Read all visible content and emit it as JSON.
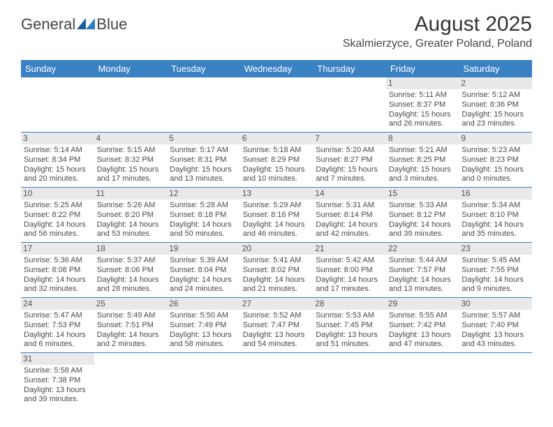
{
  "logo": {
    "text1": "General",
    "text2": "Blue",
    "color_text": "#444444",
    "color_blue": "#1a5fa0"
  },
  "title": "August 2025",
  "location": "Skalmierzyce, Greater Poland, Poland",
  "header_bg": "#3b82c4",
  "daynum_bg": "#e9e9e9",
  "weekdays": [
    "Sunday",
    "Monday",
    "Tuesday",
    "Wednesday",
    "Thursday",
    "Friday",
    "Saturday"
  ],
  "weeks": [
    [
      null,
      null,
      null,
      null,
      null,
      {
        "n": "1",
        "sr": "Sunrise: 5:11 AM",
        "ss": "Sunset: 8:37 PM",
        "d1": "Daylight: 15 hours",
        "d2": "and 26 minutes."
      },
      {
        "n": "2",
        "sr": "Sunrise: 5:12 AM",
        "ss": "Sunset: 8:36 PM",
        "d1": "Daylight: 15 hours",
        "d2": "and 23 minutes."
      }
    ],
    [
      {
        "n": "3",
        "sr": "Sunrise: 5:14 AM",
        "ss": "Sunset: 8:34 PM",
        "d1": "Daylight: 15 hours",
        "d2": "and 20 minutes."
      },
      {
        "n": "4",
        "sr": "Sunrise: 5:15 AM",
        "ss": "Sunset: 8:32 PM",
        "d1": "Daylight: 15 hours",
        "d2": "and 17 minutes."
      },
      {
        "n": "5",
        "sr": "Sunrise: 5:17 AM",
        "ss": "Sunset: 8:31 PM",
        "d1": "Daylight: 15 hours",
        "d2": "and 13 minutes."
      },
      {
        "n": "6",
        "sr": "Sunrise: 5:18 AM",
        "ss": "Sunset: 8:29 PM",
        "d1": "Daylight: 15 hours",
        "d2": "and 10 minutes."
      },
      {
        "n": "7",
        "sr": "Sunrise: 5:20 AM",
        "ss": "Sunset: 8:27 PM",
        "d1": "Daylight: 15 hours",
        "d2": "and 7 minutes."
      },
      {
        "n": "8",
        "sr": "Sunrise: 5:21 AM",
        "ss": "Sunset: 8:25 PM",
        "d1": "Daylight: 15 hours",
        "d2": "and 3 minutes."
      },
      {
        "n": "9",
        "sr": "Sunrise: 5:23 AM",
        "ss": "Sunset: 8:23 PM",
        "d1": "Daylight: 15 hours",
        "d2": "and 0 minutes."
      }
    ],
    [
      {
        "n": "10",
        "sr": "Sunrise: 5:25 AM",
        "ss": "Sunset: 8:22 PM",
        "d1": "Daylight: 14 hours",
        "d2": "and 56 minutes."
      },
      {
        "n": "11",
        "sr": "Sunrise: 5:26 AM",
        "ss": "Sunset: 8:20 PM",
        "d1": "Daylight: 14 hours",
        "d2": "and 53 minutes."
      },
      {
        "n": "12",
        "sr": "Sunrise: 5:28 AM",
        "ss": "Sunset: 8:18 PM",
        "d1": "Daylight: 14 hours",
        "d2": "and 50 minutes."
      },
      {
        "n": "13",
        "sr": "Sunrise: 5:29 AM",
        "ss": "Sunset: 8:16 PM",
        "d1": "Daylight: 14 hours",
        "d2": "and 46 minutes."
      },
      {
        "n": "14",
        "sr": "Sunrise: 5:31 AM",
        "ss": "Sunset: 8:14 PM",
        "d1": "Daylight: 14 hours",
        "d2": "and 42 minutes."
      },
      {
        "n": "15",
        "sr": "Sunrise: 5:33 AM",
        "ss": "Sunset: 8:12 PM",
        "d1": "Daylight: 14 hours",
        "d2": "and 39 minutes."
      },
      {
        "n": "16",
        "sr": "Sunrise: 5:34 AM",
        "ss": "Sunset: 8:10 PM",
        "d1": "Daylight: 14 hours",
        "d2": "and 35 minutes."
      }
    ],
    [
      {
        "n": "17",
        "sr": "Sunrise: 5:36 AM",
        "ss": "Sunset: 8:08 PM",
        "d1": "Daylight: 14 hours",
        "d2": "and 32 minutes."
      },
      {
        "n": "18",
        "sr": "Sunrise: 5:37 AM",
        "ss": "Sunset: 8:06 PM",
        "d1": "Daylight: 14 hours",
        "d2": "and 28 minutes."
      },
      {
        "n": "19",
        "sr": "Sunrise: 5:39 AM",
        "ss": "Sunset: 8:04 PM",
        "d1": "Daylight: 14 hours",
        "d2": "and 24 minutes."
      },
      {
        "n": "20",
        "sr": "Sunrise: 5:41 AM",
        "ss": "Sunset: 8:02 PM",
        "d1": "Daylight: 14 hours",
        "d2": "and 21 minutes."
      },
      {
        "n": "21",
        "sr": "Sunrise: 5:42 AM",
        "ss": "Sunset: 8:00 PM",
        "d1": "Daylight: 14 hours",
        "d2": "and 17 minutes."
      },
      {
        "n": "22",
        "sr": "Sunrise: 5:44 AM",
        "ss": "Sunset: 7:57 PM",
        "d1": "Daylight: 14 hours",
        "d2": "and 13 minutes."
      },
      {
        "n": "23",
        "sr": "Sunrise: 5:45 AM",
        "ss": "Sunset: 7:55 PM",
        "d1": "Daylight: 14 hours",
        "d2": "and 9 minutes."
      }
    ],
    [
      {
        "n": "24",
        "sr": "Sunrise: 5:47 AM",
        "ss": "Sunset: 7:53 PM",
        "d1": "Daylight: 14 hours",
        "d2": "and 6 minutes."
      },
      {
        "n": "25",
        "sr": "Sunrise: 5:49 AM",
        "ss": "Sunset: 7:51 PM",
        "d1": "Daylight: 14 hours",
        "d2": "and 2 minutes."
      },
      {
        "n": "26",
        "sr": "Sunrise: 5:50 AM",
        "ss": "Sunset: 7:49 PM",
        "d1": "Daylight: 13 hours",
        "d2": "and 58 minutes."
      },
      {
        "n": "27",
        "sr": "Sunrise: 5:52 AM",
        "ss": "Sunset: 7:47 PM",
        "d1": "Daylight: 13 hours",
        "d2": "and 54 minutes."
      },
      {
        "n": "28",
        "sr": "Sunrise: 5:53 AM",
        "ss": "Sunset: 7:45 PM",
        "d1": "Daylight: 13 hours",
        "d2": "and 51 minutes."
      },
      {
        "n": "29",
        "sr": "Sunrise: 5:55 AM",
        "ss": "Sunset: 7:42 PM",
        "d1": "Daylight: 13 hours",
        "d2": "and 47 minutes."
      },
      {
        "n": "30",
        "sr": "Sunrise: 5:57 AM",
        "ss": "Sunset: 7:40 PM",
        "d1": "Daylight: 13 hours",
        "d2": "and 43 minutes."
      }
    ],
    [
      {
        "n": "31",
        "sr": "Sunrise: 5:58 AM",
        "ss": "Sunset: 7:38 PM",
        "d1": "Daylight: 13 hours",
        "d2": "and 39 minutes."
      },
      null,
      null,
      null,
      null,
      null,
      null
    ]
  ]
}
